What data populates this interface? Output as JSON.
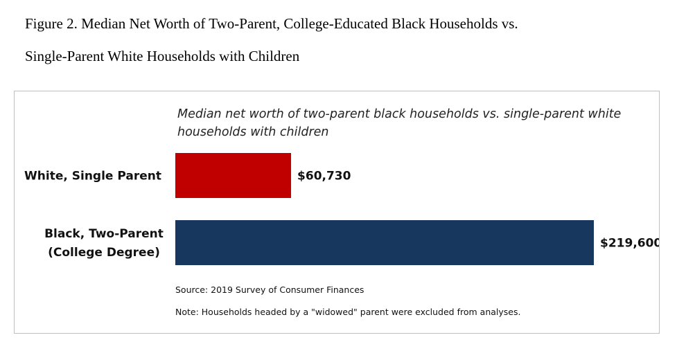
{
  "figure": {
    "caption_line1": "Figure 2. Median Net Worth of Two-Parent, College-Educated Black Households vs.",
    "caption_line2": "Single-Parent White Households with Children"
  },
  "chart_data": {
    "type": "bar",
    "orientation": "horizontal",
    "title": "Median net worth of two-parent black households vs. single-parent white households with children",
    "categories": [
      "White, Single Parent",
      "Black, Two-Parent (College Degree)"
    ],
    "category_lines": [
      [
        "White, Single Parent"
      ],
      [
        "Black, Two-Parent",
        "(College Degree)"
      ]
    ],
    "values": [
      60730,
      219600
    ],
    "value_labels": [
      "$60,730",
      "$219,600"
    ],
    "colors": [
      "#c00000",
      "#17375e"
    ],
    "xlim": [
      0,
      219600
    ],
    "grid": false,
    "legend": "none",
    "source": "Source: 2019 Survey of Consumer Finances",
    "note": "Note: Households headed by a \"widowed\" parent were excluded from analyses."
  }
}
